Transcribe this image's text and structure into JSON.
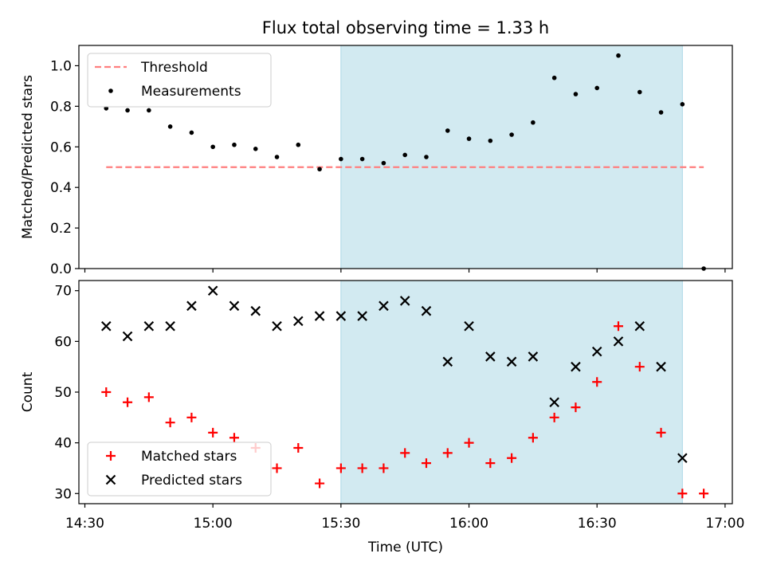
{
  "title": "Flux total observing time = 1.33 h",
  "colors": {
    "threshold": "#ff7f7f",
    "measurement": "#000000",
    "matched": "#ff0000",
    "predicted": "#000000",
    "span": "#add8e6"
  },
  "chart_data": [
    {
      "type": "scatter",
      "panel": "top",
      "ylabel": "Matched/Predicted stars",
      "xlabel": "",
      "ylim": [
        0,
        1.1
      ],
      "yticks": [
        "0.0",
        "0.2",
        "0.4",
        "0.6",
        "0.8",
        "1.0"
      ],
      "legend": {
        "placement": "top-left",
        "entries": [
          "Threshold",
          "Measurements"
        ]
      },
      "highlight_span": {
        "x_start": "15:30",
        "x_end": "16:50"
      },
      "threshold": {
        "name": "Threshold",
        "y": 0.5,
        "x_start": "14:35",
        "x_end": "16:55"
      },
      "series": [
        {
          "name": "Measurements",
          "x": [
            "14:35",
            "14:40",
            "14:45",
            "14:50",
            "14:55",
            "15:00",
            "15:05",
            "15:10",
            "15:15",
            "15:20",
            "15:25",
            "15:30",
            "15:35",
            "15:40",
            "15:45",
            "15:50",
            "15:55",
            "16:00",
            "16:05",
            "16:10",
            "16:15",
            "16:20",
            "16:25",
            "16:30",
            "16:35",
            "16:40",
            "16:45",
            "16:50",
            "16:55"
          ],
          "y": [
            0.79,
            0.78,
            0.78,
            0.7,
            0.67,
            0.6,
            0.61,
            0.59,
            0.55,
            0.61,
            0.49,
            0.54,
            0.54,
            0.52,
            0.56,
            0.55,
            0.68,
            0.64,
            0.63,
            0.66,
            0.72,
            0.94,
            0.86,
            0.89,
            1.05,
            0.87,
            0.77,
            0.81,
            0.0
          ]
        }
      ]
    },
    {
      "type": "scatter",
      "panel": "bottom",
      "ylabel": "Count",
      "xlabel": "Time (UTC)",
      "ylim": [
        28,
        72
      ],
      "yticks": [
        "30",
        "40",
        "50",
        "60",
        "70"
      ],
      "xticks": [
        "14:30",
        "15:00",
        "15:30",
        "16:00",
        "16:30",
        "17:00"
      ],
      "legend": {
        "placement": "bottom-left",
        "entries": [
          "Matched stars",
          "Predicted stars"
        ]
      },
      "highlight_span": {
        "x_start": "15:30",
        "x_end": "16:50"
      },
      "series": [
        {
          "name": "Matched stars",
          "marker": "plus",
          "x": [
            "14:35",
            "14:40",
            "14:45",
            "14:50",
            "14:55",
            "15:00",
            "15:05",
            "15:10",
            "15:15",
            "15:20",
            "15:25",
            "15:30",
            "15:35",
            "15:40",
            "15:45",
            "15:50",
            "15:55",
            "16:00",
            "16:05",
            "16:10",
            "16:15",
            "16:20",
            "16:25",
            "16:30",
            "16:35",
            "16:40",
            "16:45",
            "16:50",
            "16:55"
          ],
          "y": [
            50,
            48,
            49,
            44,
            45,
            42,
            41,
            39,
            35,
            39,
            32,
            35,
            35,
            35,
            38,
            36,
            38,
            40,
            36,
            37,
            41,
            45,
            47,
            52,
            63,
            55,
            42,
            30,
            30
          ]
        },
        {
          "name": "Predicted stars",
          "marker": "x",
          "x": [
            "14:35",
            "14:40",
            "14:45",
            "14:50",
            "14:55",
            "15:00",
            "15:05",
            "15:10",
            "15:15",
            "15:20",
            "15:25",
            "15:30",
            "15:35",
            "15:40",
            "15:45",
            "15:50",
            "15:55",
            "16:00",
            "16:05",
            "16:10",
            "16:15",
            "16:20",
            "16:25",
            "16:30",
            "16:35",
            "16:40",
            "16:45",
            "16:50"
          ],
          "y": [
            63,
            61,
            63,
            63,
            67,
            70,
            67,
            66,
            63,
            64,
            65,
            65,
            65,
            67,
            68,
            66,
            56,
            63,
            57,
            56,
            57,
            48,
            55,
            58,
            60,
            63,
            55,
            37
          ]
        }
      ]
    }
  ]
}
